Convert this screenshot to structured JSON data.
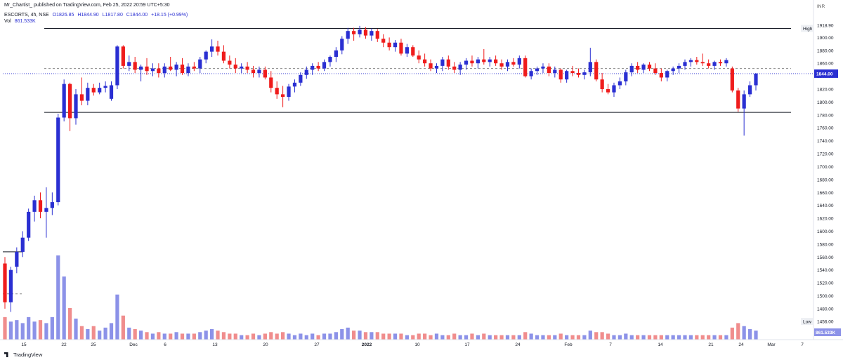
{
  "header": {
    "publish_line": "Mr_Chartist_ published on TradingView.com, Feb 25, 2022 20:59 UTC+5:30",
    "symbol_line": "ESCORTS, 4h, NSE",
    "open": "O1826.85",
    "high": "H1844.90",
    "low": "L1817.80",
    "close": "C1844.00",
    "change": "+18.15 (+0.99%)",
    "volume_label": "Vol",
    "volume_value": "861.533K"
  },
  "currency": "INR",
  "footer": {
    "brand": "TradingView"
  },
  "colors": {
    "up": "#2a2fd2",
    "down": "#ef1c1c",
    "volume_up": "#8c92e8",
    "volume_down": "#f08d8d",
    "last_price": "#2a2fd2",
    "level_line": "#131722"
  },
  "price_scale": {
    "ticks": [
      "1918.90",
      "1900.00",
      "1880.00",
      "1860.00",
      "1840.00",
      "1820.00",
      "1800.00",
      "1780.00",
      "1760.00",
      "1740.00",
      "1720.00",
      "1700.00",
      "1680.00",
      "1660.00",
      "1640.00",
      "1620.00",
      "1600.00",
      "1580.00",
      "1560.00",
      "1540.00",
      "1520.00",
      "1500.00",
      "1480.00",
      "1456.00"
    ],
    "high_label": "High",
    "low_label": "Low",
    "last_price_label": "1844.00",
    "volume_label": "861.533K"
  },
  "chart_data": {
    "type": "candlestick",
    "symbol": "ESCORTS",
    "interval": "4h",
    "exchange": "NSE",
    "ylim": [
      1456,
      1925
    ],
    "x_ticks": [
      "15",
      "22",
      "25",
      "Dec",
      "6",
      "13",
      "20",
      "27",
      "2022",
      "10",
      "17",
      "24",
      "Feb",
      "7",
      "14",
      "21",
      "24",
      "Mar",
      "7"
    ],
    "levels": [
      {
        "kind": "solid",
        "value": 1914
      },
      {
        "kind": "dashed",
        "value": 1852
      },
      {
        "kind": "solid",
        "value": 1784
      },
      {
        "kind": "solid",
        "value": 1568
      },
      {
        "kind": "dashed",
        "value": 1503
      },
      {
        "kind": "dotted_last_price",
        "value": 1844
      }
    ],
    "high_value": 1918.9,
    "low_value": 1456.0,
    "last_close": 1844.0,
    "candles": [
      {
        "o": 1550,
        "h": 1560,
        "l": 1480,
        "c": 1490,
        "v": 150
      },
      {
        "o": 1490,
        "h": 1545,
        "l": 1475,
        "c": 1540,
        "v": 120
      },
      {
        "o": 1545,
        "h": 1575,
        "l": 1535,
        "c": 1568,
        "v": 130
      },
      {
        "o": 1568,
        "h": 1600,
        "l": 1560,
        "c": 1590,
        "v": 110
      },
      {
        "o": 1590,
        "h": 1635,
        "l": 1585,
        "c": 1630,
        "v": 150
      },
      {
        "o": 1630,
        "h": 1655,
        "l": 1615,
        "c": 1648,
        "v": 120
      },
      {
        "o": 1648,
        "h": 1660,
        "l": 1620,
        "c": 1630,
        "v": 130
      },
      {
        "o": 1630,
        "h": 1668,
        "l": 1590,
        "c": 1636,
        "v": 110
      },
      {
        "o": 1636,
        "h": 1660,
        "l": 1625,
        "c": 1645,
        "v": 150
      },
      {
        "o": 1645,
        "h": 1782,
        "l": 1640,
        "c": 1776,
        "v": 560
      },
      {
        "o": 1776,
        "h": 1835,
        "l": 1770,
        "c": 1828,
        "v": 420
      },
      {
        "o": 1828,
        "h": 1830,
        "l": 1755,
        "c": 1775,
        "v": 210
      },
      {
        "o": 1775,
        "h": 1820,
        "l": 1765,
        "c": 1812,
        "v": 140
      },
      {
        "o": 1812,
        "h": 1838,
        "l": 1795,
        "c": 1802,
        "v": 90
      },
      {
        "o": 1802,
        "h": 1830,
        "l": 1795,
        "c": 1822,
        "v": 70
      },
      {
        "o": 1822,
        "h": 1828,
        "l": 1810,
        "c": 1815,
        "v": 90
      },
      {
        "o": 1815,
        "h": 1830,
        "l": 1812,
        "c": 1822,
        "v": 60
      },
      {
        "o": 1822,
        "h": 1832,
        "l": 1815,
        "c": 1825,
        "v": 80
      },
      {
        "o": 1805,
        "h": 1832,
        "l": 1802,
        "c": 1826,
        "v": 110
      },
      {
        "o": 1826,
        "h": 1888,
        "l": 1820,
        "c": 1886,
        "v": 300
      },
      {
        "o": 1886,
        "h": 1888,
        "l": 1852,
        "c": 1856,
        "v": 160
      },
      {
        "o": 1856,
        "h": 1872,
        "l": 1848,
        "c": 1862,
        "v": 80
      },
      {
        "o": 1862,
        "h": 1870,
        "l": 1845,
        "c": 1850,
        "v": 70
      },
      {
        "o": 1850,
        "h": 1858,
        "l": 1832,
        "c": 1855,
        "v": 60
      },
      {
        "o": 1855,
        "h": 1868,
        "l": 1842,
        "c": 1848,
        "v": 50
      },
      {
        "o": 1848,
        "h": 1860,
        "l": 1840,
        "c": 1852,
        "v": 40
      },
      {
        "o": 1852,
        "h": 1860,
        "l": 1838,
        "c": 1845,
        "v": 50
      },
      {
        "o": 1845,
        "h": 1860,
        "l": 1838,
        "c": 1855,
        "v": 40
      },
      {
        "o": 1855,
        "h": 1870,
        "l": 1848,
        "c": 1850,
        "v": 40
      },
      {
        "o": 1850,
        "h": 1862,
        "l": 1840,
        "c": 1858,
        "v": 50
      },
      {
        "o": 1858,
        "h": 1868,
        "l": 1842,
        "c": 1845,
        "v": 40
      },
      {
        "o": 1845,
        "h": 1860,
        "l": 1840,
        "c": 1855,
        "v": 40
      },
      {
        "o": 1855,
        "h": 1862,
        "l": 1848,
        "c": 1852,
        "v": 40
      },
      {
        "o": 1852,
        "h": 1870,
        "l": 1845,
        "c": 1866,
        "v": 50
      },
      {
        "o": 1866,
        "h": 1880,
        "l": 1860,
        "c": 1878,
        "v": 60
      },
      {
        "o": 1878,
        "h": 1897,
        "l": 1870,
        "c": 1886,
        "v": 70
      },
      {
        "o": 1886,
        "h": 1895,
        "l": 1872,
        "c": 1878,
        "v": 60
      },
      {
        "o": 1878,
        "h": 1888,
        "l": 1860,
        "c": 1864,
        "v": 50
      },
      {
        "o": 1864,
        "h": 1872,
        "l": 1852,
        "c": 1858,
        "v": 40
      },
      {
        "o": 1858,
        "h": 1868,
        "l": 1845,
        "c": 1852,
        "v": 40
      },
      {
        "o": 1852,
        "h": 1860,
        "l": 1845,
        "c": 1855,
        "v": 30
      },
      {
        "o": 1855,
        "h": 1862,
        "l": 1845,
        "c": 1850,
        "v": 30
      },
      {
        "o": 1850,
        "h": 1856,
        "l": 1838,
        "c": 1845,
        "v": 40
      },
      {
        "o": 1845,
        "h": 1855,
        "l": 1838,
        "c": 1850,
        "v": 30
      },
      {
        "o": 1850,
        "h": 1855,
        "l": 1835,
        "c": 1838,
        "v": 40
      },
      {
        "o": 1838,
        "h": 1848,
        "l": 1815,
        "c": 1822,
        "v": 50
      },
      {
        "o": 1822,
        "h": 1832,
        "l": 1805,
        "c": 1812,
        "v": 40
      },
      {
        "o": 1812,
        "h": 1825,
        "l": 1792,
        "c": 1808,
        "v": 50
      },
      {
        "o": 1808,
        "h": 1828,
        "l": 1802,
        "c": 1824,
        "v": 40
      },
      {
        "o": 1824,
        "h": 1835,
        "l": 1815,
        "c": 1830,
        "v": 30
      },
      {
        "o": 1830,
        "h": 1846,
        "l": 1825,
        "c": 1842,
        "v": 40
      },
      {
        "o": 1842,
        "h": 1855,
        "l": 1836,
        "c": 1850,
        "v": 30
      },
      {
        "o": 1850,
        "h": 1860,
        "l": 1842,
        "c": 1856,
        "v": 40
      },
      {
        "o": 1856,
        "h": 1862,
        "l": 1848,
        "c": 1852,
        "v": 30
      },
      {
        "o": 1852,
        "h": 1866,
        "l": 1848,
        "c": 1862,
        "v": 40
      },
      {
        "o": 1862,
        "h": 1872,
        "l": 1855,
        "c": 1870,
        "v": 40
      },
      {
        "o": 1870,
        "h": 1885,
        "l": 1862,
        "c": 1880,
        "v": 50
      },
      {
        "o": 1880,
        "h": 1902,
        "l": 1874,
        "c": 1898,
        "v": 70
      },
      {
        "o": 1898,
        "h": 1915,
        "l": 1890,
        "c": 1910,
        "v": 80
      },
      {
        "o": 1910,
        "h": 1915,
        "l": 1895,
        "c": 1905,
        "v": 60
      },
      {
        "o": 1905,
        "h": 1918,
        "l": 1900,
        "c": 1912,
        "v": 60
      },
      {
        "o": 1912,
        "h": 1916,
        "l": 1898,
        "c": 1903,
        "v": 50
      },
      {
        "o": 1903,
        "h": 1914,
        "l": 1895,
        "c": 1910,
        "v": 50
      },
      {
        "o": 1910,
        "h": 1913,
        "l": 1893,
        "c": 1898,
        "v": 50
      },
      {
        "o": 1898,
        "h": 1905,
        "l": 1885,
        "c": 1892,
        "v": 40
      },
      {
        "o": 1892,
        "h": 1900,
        "l": 1880,
        "c": 1885,
        "v": 40
      },
      {
        "o": 1885,
        "h": 1896,
        "l": 1878,
        "c": 1892,
        "v": 40
      },
      {
        "o": 1892,
        "h": 1898,
        "l": 1872,
        "c": 1875,
        "v": 40
      },
      {
        "o": 1875,
        "h": 1890,
        "l": 1870,
        "c": 1885,
        "v": 30
      },
      {
        "o": 1885,
        "h": 1888,
        "l": 1870,
        "c": 1872,
        "v": 30
      },
      {
        "o": 1872,
        "h": 1880,
        "l": 1860,
        "c": 1866,
        "v": 40
      },
      {
        "o": 1866,
        "h": 1875,
        "l": 1855,
        "c": 1860,
        "v": 40
      },
      {
        "o": 1860,
        "h": 1866,
        "l": 1848,
        "c": 1852,
        "v": 30
      },
      {
        "o": 1852,
        "h": 1860,
        "l": 1845,
        "c": 1856,
        "v": 40
      },
      {
        "o": 1856,
        "h": 1870,
        "l": 1848,
        "c": 1866,
        "v": 30
      },
      {
        "o": 1866,
        "h": 1872,
        "l": 1850,
        "c": 1855,
        "v": 30
      },
      {
        "o": 1855,
        "h": 1862,
        "l": 1845,
        "c": 1850,
        "v": 40
      },
      {
        "o": 1850,
        "h": 1862,
        "l": 1842,
        "c": 1858,
        "v": 30
      },
      {
        "o": 1858,
        "h": 1868,
        "l": 1850,
        "c": 1864,
        "v": 30
      },
      {
        "o": 1864,
        "h": 1872,
        "l": 1855,
        "c": 1860,
        "v": 40
      },
      {
        "o": 1860,
        "h": 1870,
        "l": 1852,
        "c": 1866,
        "v": 30
      },
      {
        "o": 1866,
        "h": 1882,
        "l": 1858,
        "c": 1862,
        "v": 40
      },
      {
        "o": 1862,
        "h": 1870,
        "l": 1855,
        "c": 1866,
        "v": 30
      },
      {
        "o": 1866,
        "h": 1872,
        "l": 1856,
        "c": 1860,
        "v": 30
      },
      {
        "o": 1860,
        "h": 1866,
        "l": 1850,
        "c": 1855,
        "v": 30
      },
      {
        "o": 1855,
        "h": 1866,
        "l": 1848,
        "c": 1862,
        "v": 30
      },
      {
        "o": 1862,
        "h": 1868,
        "l": 1855,
        "c": 1858,
        "v": 30
      },
      {
        "o": 1858,
        "h": 1872,
        "l": 1852,
        "c": 1868,
        "v": 30
      },
      {
        "o": 1868,
        "h": 1872,
        "l": 1838,
        "c": 1840,
        "v": 50
      },
      {
        "o": 1840,
        "h": 1852,
        "l": 1835,
        "c": 1848,
        "v": 40
      },
      {
        "o": 1848,
        "h": 1855,
        "l": 1842,
        "c": 1852,
        "v": 30
      },
      {
        "o": 1852,
        "h": 1860,
        "l": 1845,
        "c": 1855,
        "v": 30
      },
      {
        "o": 1855,
        "h": 1860,
        "l": 1840,
        "c": 1845,
        "v": 30
      },
      {
        "o": 1845,
        "h": 1855,
        "l": 1838,
        "c": 1850,
        "v": 30
      },
      {
        "o": 1850,
        "h": 1852,
        "l": 1830,
        "c": 1835,
        "v": 40
      },
      {
        "o": 1835,
        "h": 1850,
        "l": 1830,
        "c": 1848,
        "v": 30
      },
      {
        "o": 1848,
        "h": 1856,
        "l": 1840,
        "c": 1845,
        "v": 30
      },
      {
        "o": 1845,
        "h": 1852,
        "l": 1838,
        "c": 1842,
        "v": 30
      },
      {
        "o": 1842,
        "h": 1850,
        "l": 1835,
        "c": 1846,
        "v": 30
      },
      {
        "o": 1846,
        "h": 1884,
        "l": 1840,
        "c": 1862,
        "v": 60
      },
      {
        "o": 1862,
        "h": 1866,
        "l": 1832,
        "c": 1835,
        "v": 50
      },
      {
        "o": 1835,
        "h": 1845,
        "l": 1815,
        "c": 1820,
        "v": 50
      },
      {
        "o": 1820,
        "h": 1828,
        "l": 1812,
        "c": 1815,
        "v": 40
      },
      {
        "o": 1815,
        "h": 1830,
        "l": 1808,
        "c": 1826,
        "v": 30
      },
      {
        "o": 1826,
        "h": 1838,
        "l": 1820,
        "c": 1832,
        "v": 30
      },
      {
        "o": 1832,
        "h": 1850,
        "l": 1826,
        "c": 1846,
        "v": 40
      },
      {
        "o": 1846,
        "h": 1860,
        "l": 1840,
        "c": 1856,
        "v": 30
      },
      {
        "o": 1856,
        "h": 1862,
        "l": 1845,
        "c": 1850,
        "v": 30
      },
      {
        "o": 1850,
        "h": 1860,
        "l": 1845,
        "c": 1858,
        "v": 30
      },
      {
        "o": 1858,
        "h": 1862,
        "l": 1848,
        "c": 1852,
        "v": 30
      },
      {
        "o": 1852,
        "h": 1860,
        "l": 1842,
        "c": 1845,
        "v": 30
      },
      {
        "o": 1845,
        "h": 1852,
        "l": 1832,
        "c": 1838,
        "v": 30
      },
      {
        "o": 1838,
        "h": 1850,
        "l": 1832,
        "c": 1848,
        "v": 30
      },
      {
        "o": 1848,
        "h": 1855,
        "l": 1842,
        "c": 1852,
        "v": 30
      },
      {
        "o": 1852,
        "h": 1860,
        "l": 1845,
        "c": 1856,
        "v": 30
      },
      {
        "o": 1856,
        "h": 1866,
        "l": 1850,
        "c": 1862,
        "v": 30
      },
      {
        "o": 1862,
        "h": 1868,
        "l": 1855,
        "c": 1865,
        "v": 30
      },
      {
        "o": 1865,
        "h": 1870,
        "l": 1858,
        "c": 1862,
        "v": 30
      },
      {
        "o": 1862,
        "h": 1875,
        "l": 1856,
        "c": 1860,
        "v": 30
      },
      {
        "o": 1860,
        "h": 1866,
        "l": 1852,
        "c": 1856,
        "v": 30
      },
      {
        "o": 1856,
        "h": 1864,
        "l": 1850,
        "c": 1862,
        "v": 30
      },
      {
        "o": 1862,
        "h": 1866,
        "l": 1856,
        "c": 1860,
        "v": 30
      },
      {
        "o": 1860,
        "h": 1868,
        "l": 1855,
        "c": 1865,
        "v": 30
      },
      {
        "o": 1852,
        "h": 1855,
        "l": 1815,
        "c": 1818,
        "v": 80
      },
      {
        "o": 1818,
        "h": 1822,
        "l": 1785,
        "c": 1790,
        "v": 110
      },
      {
        "o": 1790,
        "h": 1818,
        "l": 1748,
        "c": 1812,
        "v": 90
      },
      {
        "o": 1812,
        "h": 1832,
        "l": 1808,
        "c": 1826,
        "v": 70
      },
      {
        "o": 1826,
        "h": 1845,
        "l": 1818,
        "c": 1844,
        "v": 60
      }
    ]
  }
}
